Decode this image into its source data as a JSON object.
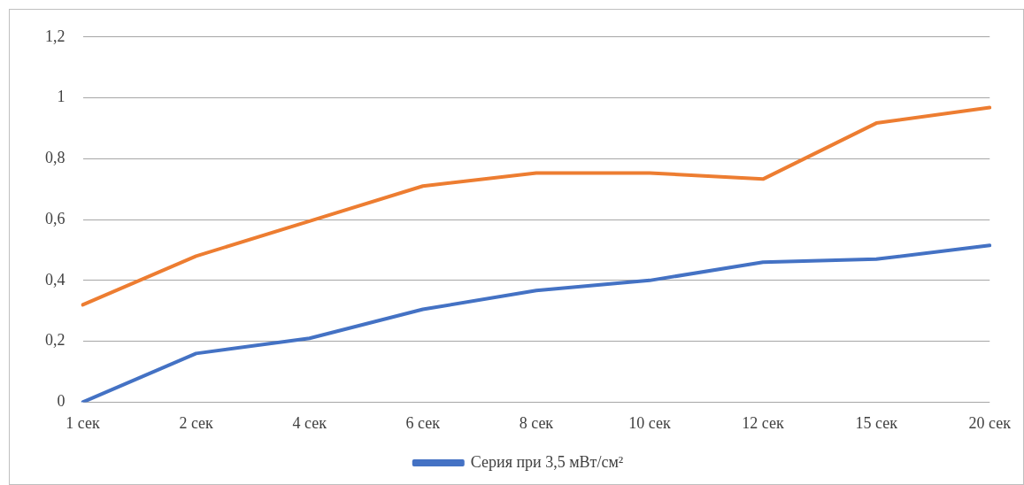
{
  "chart_data": {
    "type": "line",
    "categories": [
      "1 сек",
      "2 сек",
      "4 сек",
      "6 сек",
      "8 сек",
      "10 сек",
      "12 сек",
      "15 сек",
      "20 сек"
    ],
    "series": [
      {
        "name": "Серия при 3,5 мВт/см²",
        "color": "#4472c4",
        "values": [
          0,
          0.16,
          0.21,
          0.305,
          0.367,
          0.4,
          0.46,
          0.47,
          0.515
        ]
      },
      {
        "color": "#ed7d31",
        "values": [
          0.32,
          0.48,
          0.595,
          0.71,
          0.753,
          0.753,
          0.733,
          0.917,
          0.968
        ]
      }
    ],
    "ylim": [
      0,
      1.2
    ],
    "yticks": [
      0,
      {
        "value": 0.2,
        "label": "0,2"
      },
      {
        "value": 0.4,
        "label": "0,4"
      },
      {
        "value": 0.6,
        "label": "0,6"
      },
      {
        "value": 0.8,
        "label": "0,8"
      },
      1,
      {
        "value": 1.2,
        "label": "1,2"
      }
    ],
    "grid": "y",
    "legend": "bottom",
    "marker": "none",
    "line_style": "solid"
  }
}
